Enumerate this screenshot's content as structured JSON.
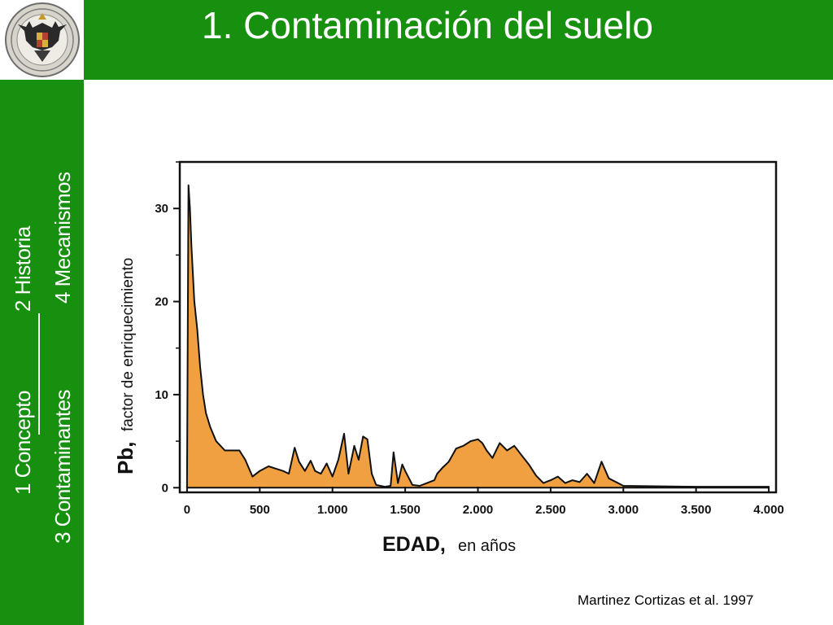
{
  "slide": {
    "title": "1.  Contaminación del suelo",
    "citation": "Martinez Cortizas et al. 1997"
  },
  "nav": {
    "items": [
      {
        "label": "1  Concepto"
      },
      {
        "label": "2  Historia"
      },
      {
        "label": "3 Contaminantes"
      },
      {
        "label": "4  Mecanismos"
      }
    ]
  },
  "logo": {
    "icon": "university-seal-icon"
  },
  "colors": {
    "header_green": "#17900f",
    "area_fill": "#f0a040",
    "outline": "#111111"
  },
  "chart_data": {
    "type": "area",
    "xlabel_main": "EDAD,",
    "xlabel_sub": "en años",
    "ylabel_main": "Pb,",
    "ylabel_sub": "factor de enriquecimiento",
    "xlim": [
      -50,
      4050
    ],
    "ylim": [
      -0.5,
      35
    ],
    "x_ticks": [
      0,
      500,
      1000,
      1500,
      2000,
      2500,
      3000,
      3500,
      4000
    ],
    "x_tick_labels": [
      "0",
      "500",
      "1.000",
      "1.500",
      "2.000",
      "2.500",
      "3.000",
      "3.500",
      "4.000"
    ],
    "y_ticks": [
      0,
      10,
      20,
      30
    ],
    "y_tick_labels": [
      "0",
      "10",
      "20",
      "30"
    ],
    "grid": false,
    "legend": "none",
    "series": [
      {
        "x": [
          0,
          10,
          20,
          30,
          50,
          70,
          90,
          110,
          130,
          160,
          200,
          260,
          300,
          360,
          400,
          450,
          500,
          560,
          620,
          660,
          700,
          740,
          770,
          810,
          850,
          880,
          920,
          960,
          1000,
          1040,
          1080,
          1110,
          1150,
          1180,
          1210,
          1240,
          1270,
          1300,
          1330,
          1360,
          1400,
          1420,
          1450,
          1480,
          1500,
          1550,
          1600,
          1650,
          1700,
          1720,
          1760,
          1800,
          1850,
          1900,
          1950,
          2000,
          2030,
          2060,
          2100,
          2150,
          2200,
          2250,
          2300,
          2350,
          2400,
          2450,
          2500,
          2550,
          2600,
          2650,
          2700,
          2750,
          2800,
          2850,
          2900,
          3000,
          3500,
          4000
        ],
        "y": [
          0.5,
          32.5,
          30,
          26,
          20,
          17,
          13,
          10,
          8,
          6.5,
          5,
          4,
          4,
          4,
          3,
          1.2,
          1.8,
          2.3,
          2,
          1.8,
          1.5,
          4.3,
          2.8,
          1.8,
          2.9,
          1.8,
          1.5,
          2.6,
          1.2,
          3,
          5.8,
          1.5,
          4.5,
          3,
          5.5,
          5.2,
          1.5,
          0.3,
          0.2,
          0.1,
          0.2,
          3.8,
          0.5,
          2.5,
          1.8,
          0.3,
          0.2,
          0.5,
          0.8,
          1.5,
          2.2,
          2.8,
          4.2,
          4.5,
          5,
          5.2,
          4.8,
          4,
          3.2,
          4.8,
          4,
          4.5,
          3.5,
          2.5,
          1.3,
          0.5,
          0.8,
          1.2,
          0.5,
          0.8,
          0.6,
          1.5,
          0.5,
          2.8,
          1,
          0.2,
          0.1,
          0.1
        ]
      }
    ]
  }
}
